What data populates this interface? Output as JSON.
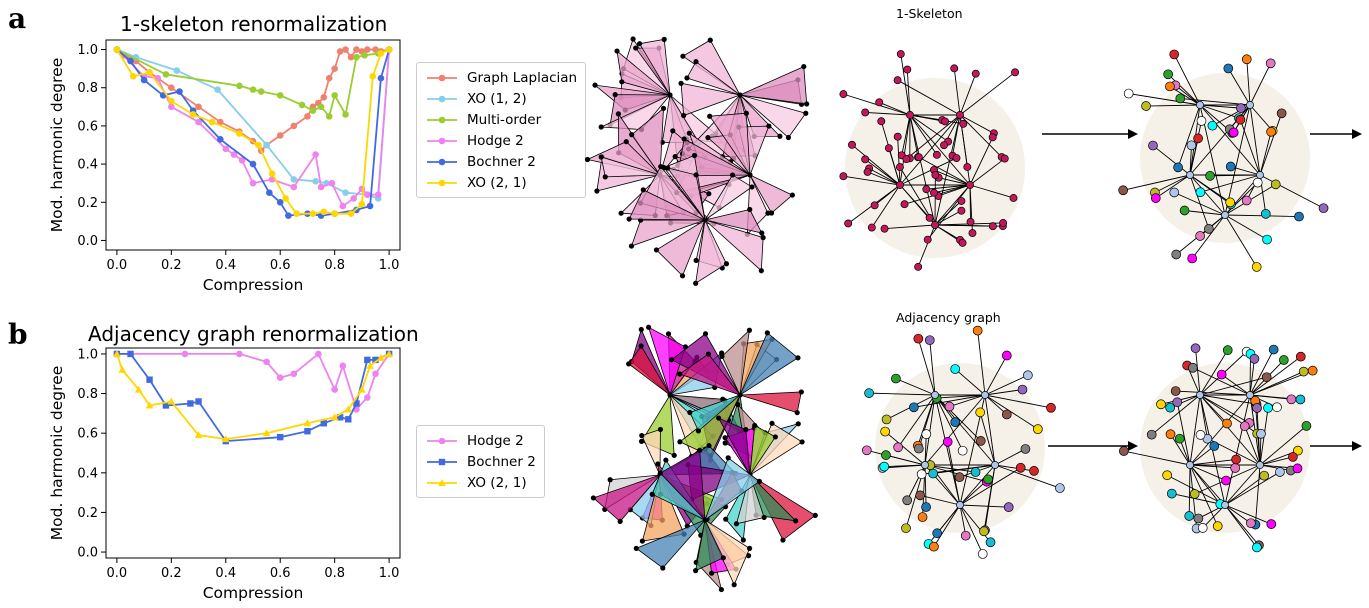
{
  "panel_a": {
    "letter": "a",
    "diagram_label": "1-Skeleton"
  },
  "panel_b": {
    "letter": "b",
    "diagram_label": "Adjacency graph"
  },
  "chart_data": [
    {
      "type": "line",
      "title": "1-skeleton renormalization",
      "xlabel": "Compression",
      "ylabel": "Mod. harmonic degree",
      "xlim": [
        -0.04,
        1.04
      ],
      "ylim": [
        -0.05,
        1.05
      ],
      "xticks": [
        "0.0",
        "0.2",
        "0.4",
        "0.6",
        "0.8",
        "1.0"
      ],
      "yticks": [
        "0.0",
        "0.2",
        "0.4",
        "0.6",
        "0.8",
        "1.0"
      ],
      "legend_position": "outside-right",
      "series": [
        {
          "name": "Graph Laplacian",
          "color": "#f08070",
          "marker": "circle",
          "x": [
            0.0,
            0.03,
            0.07,
            0.12,
            0.2,
            0.3,
            0.38,
            0.45,
            0.5,
            0.53,
            0.55,
            0.6,
            0.65,
            0.7,
            0.72,
            0.74,
            0.76,
            0.78,
            0.8,
            0.82,
            0.84,
            0.86,
            0.88,
            0.9,
            0.92,
            0.95,
            0.97,
            1.0
          ],
          "y": [
            1.0,
            0.97,
            0.94,
            0.88,
            0.8,
            0.7,
            0.62,
            0.57,
            0.52,
            0.47,
            0.5,
            0.55,
            0.6,
            0.65,
            0.7,
            0.72,
            0.75,
            0.85,
            0.9,
            0.99,
            1.0,
            0.96,
            1.0,
            0.99,
            1.0,
            1.0,
            0.99,
            1.0
          ]
        },
        {
          "name": "XO (1, 2)",
          "color": "#87ceeb",
          "marker": "circle",
          "x": [
            0.0,
            0.07,
            0.22,
            0.37,
            0.55,
            0.65,
            0.73,
            0.77,
            0.84,
            0.92,
            0.96,
            1.0
          ],
          "y": [
            1.0,
            0.96,
            0.89,
            0.79,
            0.5,
            0.32,
            0.31,
            0.3,
            0.25,
            0.24,
            0.22,
            1.0
          ]
        },
        {
          "name": "Multi-order",
          "color": "#9acd32",
          "marker": "circle",
          "x": [
            0.0,
            0.18,
            0.45,
            0.5,
            0.53,
            0.6,
            0.68,
            0.72,
            0.75,
            0.78,
            0.8,
            0.84,
            0.88,
            0.91,
            0.96,
            1.0
          ],
          "y": [
            1.0,
            0.87,
            0.81,
            0.79,
            0.78,
            0.76,
            0.71,
            0.68,
            0.7,
            0.65,
            0.76,
            0.66,
            0.96,
            0.97,
            0.98,
            1.0
          ]
        },
        {
          "name": "Hodge 2",
          "color": "#ee82ee",
          "marker": "circle",
          "x": [
            0.0,
            0.1,
            0.15,
            0.2,
            0.3,
            0.4,
            0.43,
            0.46,
            0.5,
            0.57,
            0.65,
            0.73,
            0.75,
            0.79,
            0.83,
            0.87,
            0.9,
            0.92,
            0.96,
            1.0
          ],
          "y": [
            1.0,
            0.86,
            0.85,
            0.7,
            0.62,
            0.48,
            0.45,
            0.42,
            0.3,
            0.32,
            0.28,
            0.45,
            0.28,
            0.3,
            0.18,
            0.22,
            0.27,
            0.24,
            0.24,
            1.0
          ]
        },
        {
          "name": "Bochner 2",
          "color": "#4169e1",
          "marker": "circle",
          "x": [
            0.0,
            0.05,
            0.1,
            0.17,
            0.23,
            0.28,
            0.38,
            0.5,
            0.56,
            0.6,
            0.63,
            0.7,
            0.75,
            0.8,
            0.88,
            0.93,
            0.97,
            1.0
          ],
          "y": [
            1.0,
            0.94,
            0.84,
            0.76,
            0.78,
            0.68,
            0.53,
            0.4,
            0.25,
            0.2,
            0.13,
            0.14,
            0.13,
            0.14,
            0.16,
            0.18,
            0.85,
            1.0
          ]
        },
        {
          "name": "XO (2, 1)",
          "color": "#ffd700",
          "marker": "circle",
          "x": [
            0.0,
            0.06,
            0.12,
            0.2,
            0.28,
            0.35,
            0.45,
            0.52,
            0.57,
            0.62,
            0.66,
            0.72,
            0.76,
            0.8,
            0.86,
            0.9,
            0.94,
            0.97,
            1.0
          ],
          "y": [
            1.0,
            0.86,
            0.88,
            0.73,
            0.66,
            0.62,
            0.56,
            0.5,
            0.35,
            0.22,
            0.14,
            0.14,
            0.15,
            0.14,
            0.14,
            0.19,
            0.86,
            0.98,
            1.0
          ]
        }
      ]
    },
    {
      "type": "line",
      "title": "Adjacency graph renormalization",
      "xlabel": "Compression",
      "ylabel": "Mod. harmonic degree",
      "xlim": [
        -0.04,
        1.04
      ],
      "ylim": [
        -0.03,
        1.03
      ],
      "xticks": [
        "0.0",
        "0.2",
        "0.4",
        "0.6",
        "0.8",
        "1.0"
      ],
      "yticks": [
        "0.0",
        "0.2",
        "0.4",
        "0.6",
        "0.8",
        "1.0"
      ],
      "legend_position": "outside-right",
      "series": [
        {
          "name": "Hodge 2",
          "color": "#ee82ee",
          "marker": "circle",
          "x": [
            0.0,
            0.25,
            0.45,
            0.55,
            0.6,
            0.65,
            0.74,
            0.8,
            0.83,
            0.88,
            0.92,
            0.95,
            1.0
          ],
          "y": [
            1.0,
            1.0,
            1.0,
            0.96,
            0.88,
            0.9,
            1.0,
            0.82,
            0.94,
            0.72,
            0.78,
            0.9,
            1.0
          ]
        },
        {
          "name": "Bochner 2",
          "color": "#4169e1",
          "marker": "square",
          "x": [
            0.0,
            0.05,
            0.12,
            0.18,
            0.27,
            0.3,
            0.4,
            0.6,
            0.7,
            0.76,
            0.82,
            0.85,
            0.88,
            0.92,
            0.95,
            1.0
          ],
          "y": [
            1.0,
            1.0,
            0.87,
            0.74,
            0.75,
            0.76,
            0.56,
            0.58,
            0.61,
            0.65,
            0.68,
            0.67,
            0.75,
            0.97,
            0.97,
            1.0
          ]
        },
        {
          "name": "XO (2, 1)",
          "color": "#ffd700",
          "marker": "triangle",
          "x": [
            0.0,
            0.02,
            0.08,
            0.12,
            0.2,
            0.3,
            0.4,
            0.55,
            0.7,
            0.8,
            0.85,
            0.9,
            0.93,
            0.97,
            1.0
          ],
          "y": [
            1.0,
            0.92,
            0.82,
            0.74,
            0.76,
            0.59,
            0.57,
            0.6,
            0.65,
            0.68,
            0.72,
            0.82,
            0.94,
            0.98,
            1.0
          ]
        }
      ]
    }
  ]
}
